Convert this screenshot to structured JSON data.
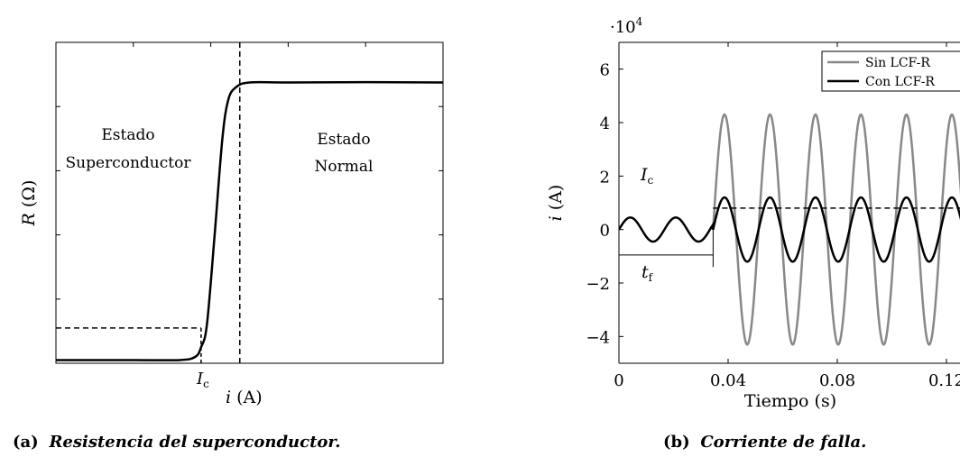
{
  "chart_data": [
    {
      "type": "line",
      "xlabel": "i (A)",
      "ylabel": "R (Ω)",
      "tick_label_x": "Ic",
      "annotations": {
        "left_line1": "Estado",
        "left_line2": "Superconductor",
        "right_line1": "Estado",
        "right_line2": "Normal"
      },
      "caption_label": "(a)",
      "caption_text": "Resistencia del superconductor.",
      "x_range": [
        0,
        1
      ],
      "y_range": [
        0,
        1
      ],
      "curve": {
        "x": [
          0,
          0.2,
          0.32,
          0.36,
          0.375,
          0.39,
          0.41,
          0.43,
          0.445,
          0.465,
          0.5,
          0.6,
          0.8,
          1.0
        ],
        "y": [
          0.01,
          0.01,
          0.01,
          0.02,
          0.05,
          0.12,
          0.4,
          0.7,
          0.82,
          0.86,
          0.875,
          0.875,
          0.876,
          0.875
        ]
      },
      "ic_x": 0.375,
      "ic_y": 0.11,
      "transition_end_x": 0.475,
      "grid": false
    },
    {
      "type": "line",
      "title": "",
      "xlabel": "Tiempo (s)",
      "ylabel": "i (A)",
      "y_multiplier_label": "·10",
      "y_multiplier_exp": "4",
      "x_ticks": [
        0,
        0.04,
        0.08,
        0.12
      ],
      "x_tick_labels": [
        "0",
        "0.04",
        "0.08",
        "0.12"
      ],
      "y_ticks": [
        -4,
        -2,
        0,
        2,
        4,
        6
      ],
      "y_tick_labels": [
        "−4",
        "−2",
        "0",
        "2",
        "4",
        "6"
      ],
      "x_range": [
        0,
        0.14
      ],
      "y_range": [
        -5,
        7
      ],
      "legend_position": "top-right",
      "series": [
        {
          "name": "Sin LCF-R",
          "color": "#888888",
          "prefault_amplitude": 0.45,
          "fault_amplitude": 4.3
        },
        {
          "name": "Con LCF-R",
          "color": "#000000",
          "prefault_amplitude": 0.45,
          "fault_amplitude": 1.2
        }
      ],
      "frequency_hz": 60,
      "fault_time": 0.0345,
      "ic_level": 0.8,
      "ic_label": "Ic",
      "tf_label": "tf",
      "caption_label": "(b)",
      "caption_text": "Corriente de falla."
    }
  ]
}
